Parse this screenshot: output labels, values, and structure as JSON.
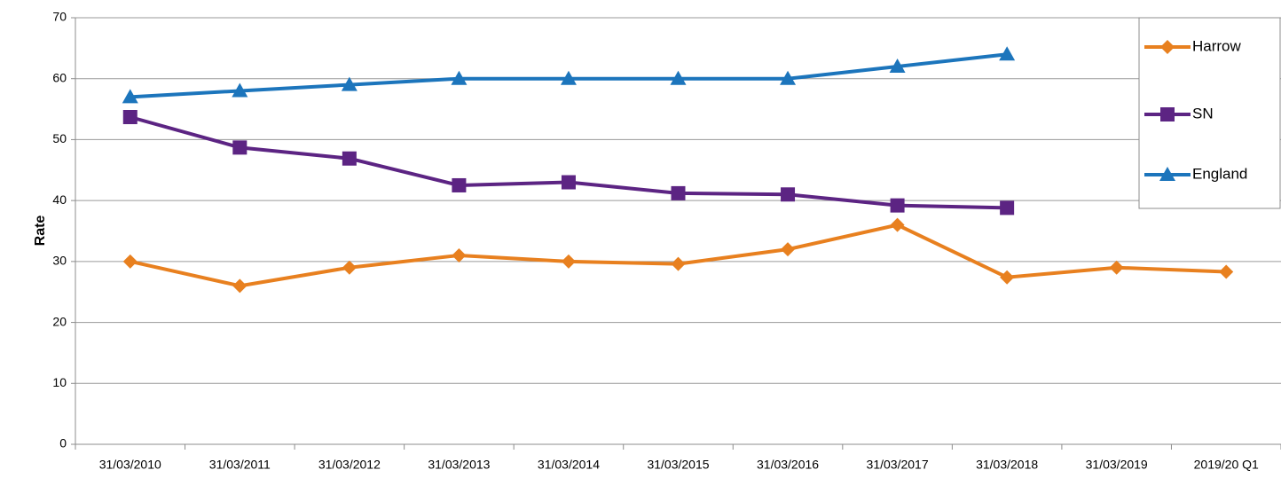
{
  "chart_data": {
    "type": "line",
    "ylabel": "Rate",
    "categories": [
      "31/03/2010",
      "31/03/2011",
      "31/03/2012",
      "31/03/2013",
      "31/03/2014",
      "31/03/2015",
      "31/03/2016",
      "31/03/2017",
      "31/03/2018",
      "31/03/2019",
      "2019/20 Q1"
    ],
    "series": [
      {
        "name": "Harrow",
        "color": "#e8801f",
        "marker": "diamond",
        "values": [
          30,
          26,
          29,
          31,
          30,
          29.6,
          32,
          36,
          27.4,
          29,
          28.3
        ]
      },
      {
        "name": "SN",
        "color": "#5c2483",
        "marker": "square",
        "values": [
          53.7,
          48.7,
          46.9,
          42.5,
          43,
          41.2,
          41,
          39.2,
          38.8,
          null,
          null
        ]
      },
      {
        "name": "England",
        "color": "#1c75bc",
        "marker": "triangle",
        "values": [
          57,
          58,
          59,
          60,
          60,
          60,
          60,
          62,
          64,
          null,
          null
        ]
      }
    ],
    "ylim": [
      0,
      70
    ],
    "yticks": [
      0,
      10,
      20,
      30,
      40,
      50,
      60,
      70
    ],
    "grid": true,
    "legend": "upper right"
  }
}
